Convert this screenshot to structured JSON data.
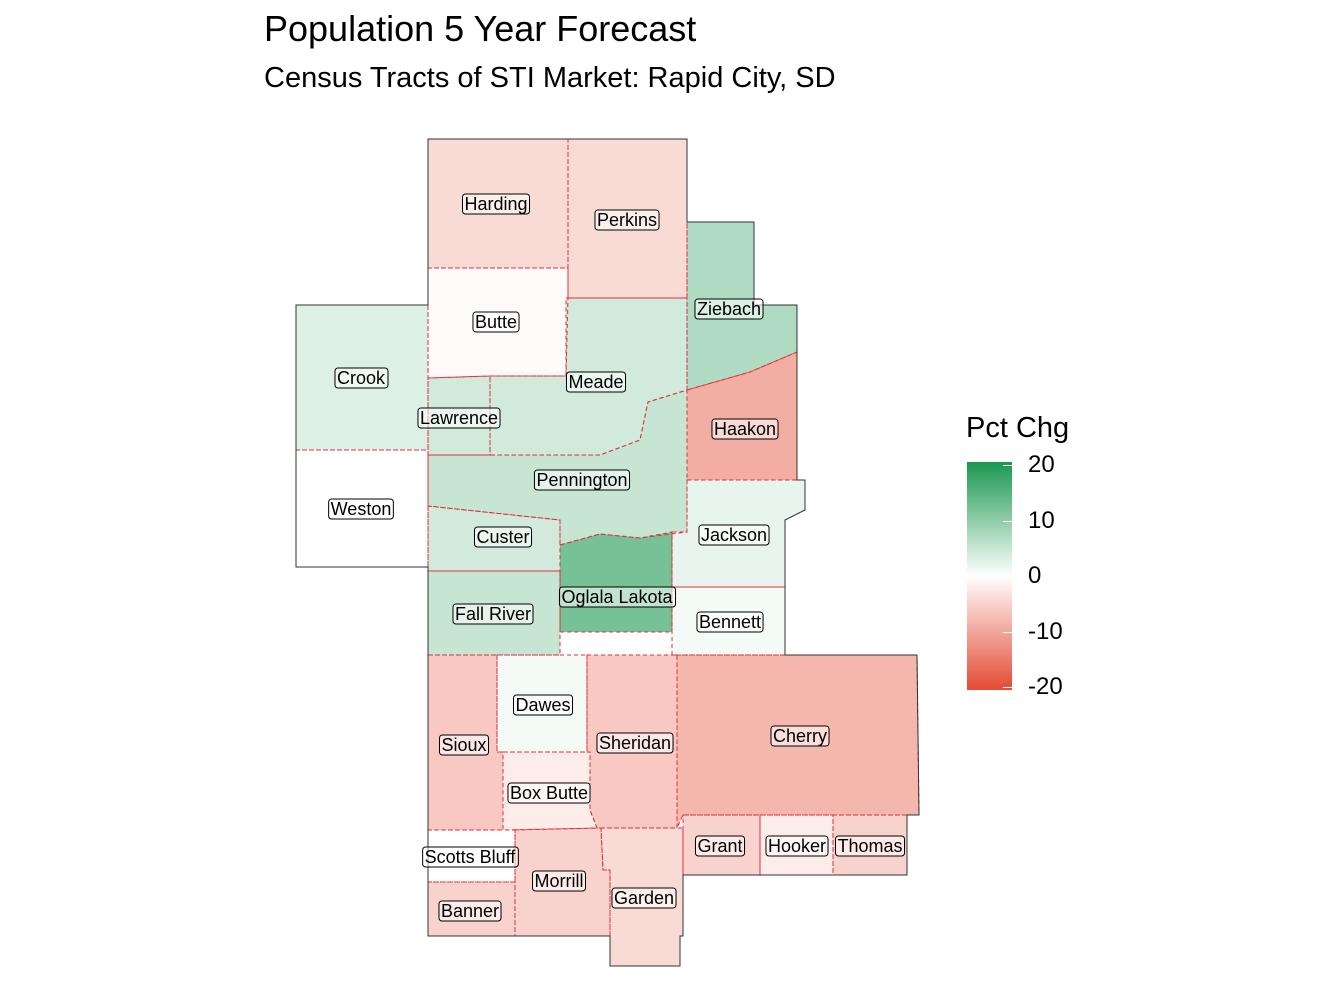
{
  "title": "Population 5 Year Forecast",
  "subtitle": "Census Tracts of STI Market: Rapid City, SD",
  "legend": {
    "title": "Pct Chg",
    "ticks": [
      "20",
      "10",
      "0",
      "-10",
      "-20"
    ],
    "range": [
      -20,
      20
    ],
    "low_color": "#e34a33",
    "mid_color": "#ffffff",
    "high_color": "#1a9850"
  },
  "counties": [
    {
      "name": "Harding",
      "pct_chg": -4
    },
    {
      "name": "Perkins",
      "pct_chg": -4
    },
    {
      "name": "Ziebach",
      "pct_chg": 7
    },
    {
      "name": "Butte",
      "pct_chg": -0.5
    },
    {
      "name": "Crook",
      "pct_chg": 3
    },
    {
      "name": "Meade",
      "pct_chg": 4
    },
    {
      "name": "Lawrence",
      "pct_chg": 4
    },
    {
      "name": "Haakon",
      "pct_chg": -9
    },
    {
      "name": "Pennington",
      "pct_chg": 5
    },
    {
      "name": "Weston",
      "pct_chg": 0
    },
    {
      "name": "Custer",
      "pct_chg": 4
    },
    {
      "name": "Jackson",
      "pct_chg": 2
    },
    {
      "name": "Oglala Lakota",
      "pct_chg": 12
    },
    {
      "name": "Fall River",
      "pct_chg": 5
    },
    {
      "name": "Bennett",
      "pct_chg": 1
    },
    {
      "name": "Dawes",
      "pct_chg": 1
    },
    {
      "name": "Sioux",
      "pct_chg": -6
    },
    {
      "name": "Sheridan",
      "pct_chg": -6
    },
    {
      "name": "Cherry",
      "pct_chg": -8
    },
    {
      "name": "Box Butte",
      "pct_chg": -2
    },
    {
      "name": "Grant",
      "pct_chg": -5
    },
    {
      "name": "Hooker",
      "pct_chg": -2
    },
    {
      "name": "Thomas",
      "pct_chg": -5
    },
    {
      "name": "Scotts Bluff",
      "pct_chg": 0
    },
    {
      "name": "Morrill",
      "pct_chg": -5
    },
    {
      "name": "Garden",
      "pct_chg": -4
    },
    {
      "name": "Banner",
      "pct_chg": -5
    }
  ]
}
